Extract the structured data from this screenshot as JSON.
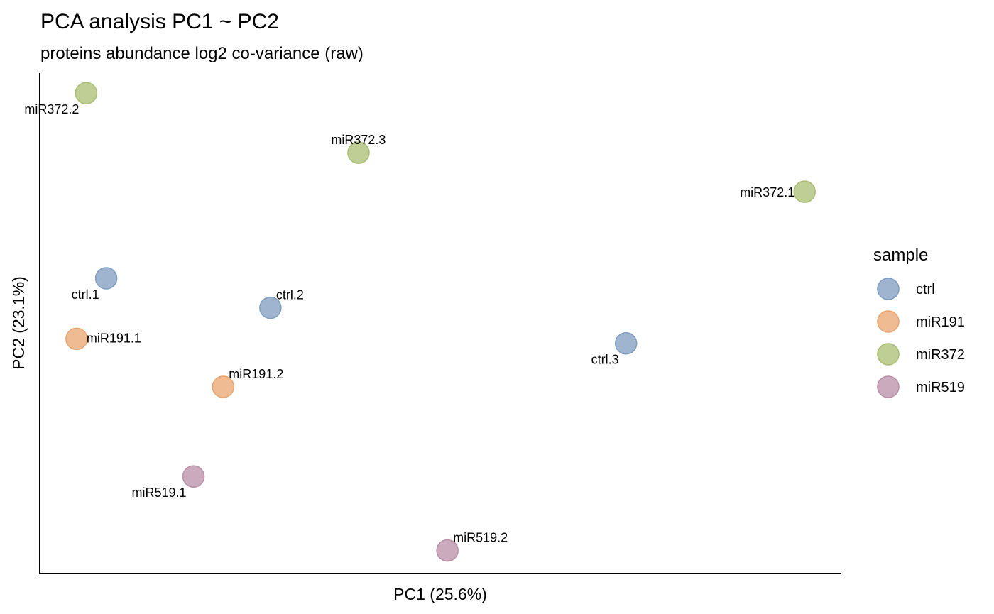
{
  "chart_data": {
    "type": "scatter",
    "title": "PCA analysis PC1 ~ PC2",
    "subtitle": "proteins abundance log2 co-variance (raw)",
    "xlabel": "PC1 (25.6%)",
    "ylabel": "PC2 (23.1%)",
    "grid": false,
    "axis_ticks": false,
    "xlim": [
      0,
      100
    ],
    "ylim": [
      0,
      100
    ],
    "legend": {
      "title": "sample",
      "placement": "right",
      "entries": [
        {
          "name": "ctrl",
          "color": "#7f9cbf"
        },
        {
          "name": "miR191",
          "color": "#e8a46f"
        },
        {
          "name": "miR372",
          "color": "#a9bd72"
        },
        {
          "name": "miR519",
          "color": "#b98ea7"
        }
      ]
    },
    "points": [
      {
        "label": "miR372.2",
        "group": "miR372",
        "x": 5.8,
        "y": 96.0,
        "label_pos": "below-left"
      },
      {
        "label": "miR372.3",
        "group": "miR372",
        "x": 39.8,
        "y": 84.1,
        "label_pos": "above"
      },
      {
        "label": "miR372.1",
        "group": "miR372",
        "x": 95.5,
        "y": 76.3,
        "label_pos": "left"
      },
      {
        "label": "ctrl.1",
        "group": "ctrl",
        "x": 8.3,
        "y": 59.0,
        "label_pos": "below-left"
      },
      {
        "label": "ctrl.2",
        "group": "ctrl",
        "x": 28.8,
        "y": 53.1,
        "label_pos": "above-right"
      },
      {
        "label": "ctrl.3",
        "group": "ctrl",
        "x": 73.2,
        "y": 46.0,
        "label_pos": "below-left"
      },
      {
        "label": "miR191.1",
        "group": "miR191",
        "x": 4.6,
        "y": 46.9,
        "label_pos": "right"
      },
      {
        "label": "miR191.2",
        "group": "miR191",
        "x": 22.9,
        "y": 37.3,
        "label_pos": "above-right"
      },
      {
        "label": "miR519.1",
        "group": "miR519",
        "x": 19.2,
        "y": 19.4,
        "label_pos": "below-left"
      },
      {
        "label": "miR519.2",
        "group": "miR519",
        "x": 50.9,
        "y": 4.6,
        "label_pos": "above-right"
      }
    ]
  }
}
